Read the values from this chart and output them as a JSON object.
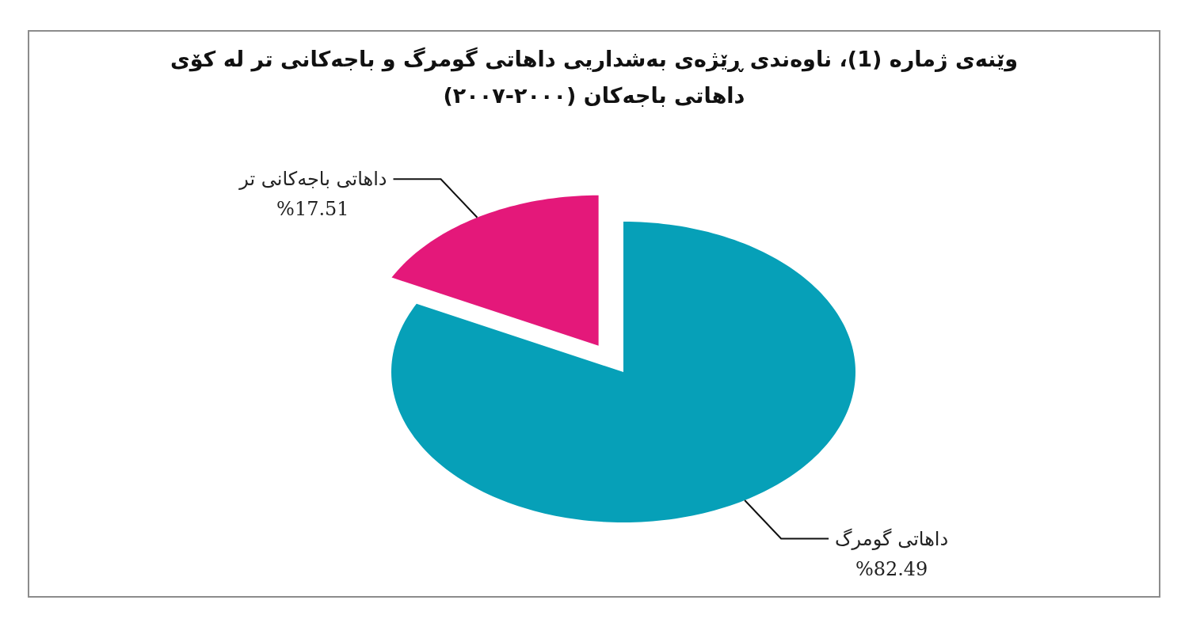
{
  "chart_data": {
    "type": "pie",
    "title": "وێنەی ژمارە (1)، ناوەندی ڕێژەی بەشداریی داهاتی گومرگ و باجەکانی تر لە کۆی داهاتی باجەکان (٢٠٠٠-٢٠٠٧)",
    "categories": [
      "داهاتی گومرگ",
      "داهاتی باجەکانی تر"
    ],
    "values": [
      82.49,
      17.51
    ],
    "colors": [
      "#06a0b8",
      "#e4187a"
    ],
    "value_labels": [
      "%82.49",
      "%17.51"
    ]
  }
}
